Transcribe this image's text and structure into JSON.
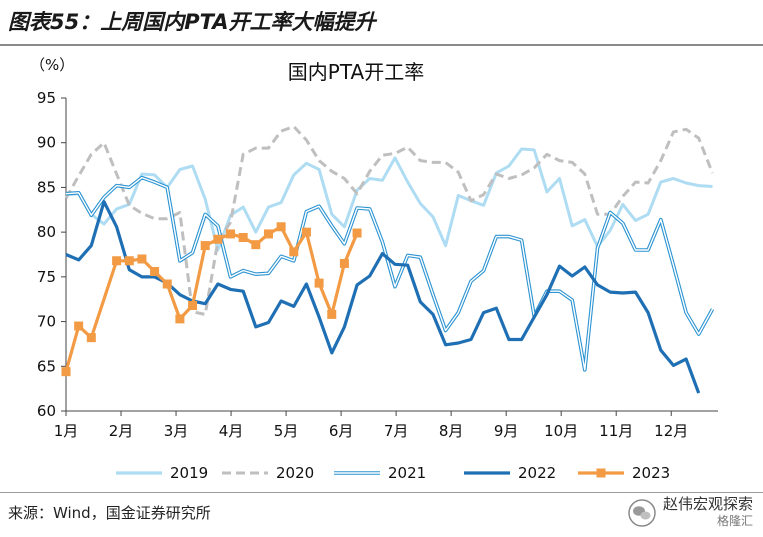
{
  "figure_title": "图表55：上周国内PTA开工率大幅提升",
  "source": "来源：Wind，国金证券研究所",
  "watermark": {
    "text": "赵伟宏观探索",
    "sub": "格隆汇"
  },
  "colors": {
    "2019": "#aedcf3",
    "2020": "#bfbfbf",
    "2021": "#2b93d1",
    "2022": "#1f6fb4",
    "2023": "#f29a44"
  },
  "chart_data": {
    "type": "line",
    "title": "国内PTA开工率",
    "ylabel": "（%）",
    "ylim": [
      60,
      95
    ],
    "yticks": [
      60,
      65,
      70,
      75,
      80,
      85,
      90,
      95
    ],
    "xlim": [
      1,
      12.85
    ],
    "xticks": [
      1,
      2,
      3,
      4,
      5,
      6,
      7,
      8,
      9,
      10,
      11,
      12
    ],
    "xticklabels": [
      "1月",
      "2月",
      "3月",
      "4月",
      "5月",
      "6月",
      "7月",
      "8月",
      "9月",
      "10月",
      "11月",
      "12月"
    ],
    "legend_position": "bottom",
    "series": [
      {
        "name": "2019",
        "style": "solid-light",
        "x": [
          1.0,
          1.23,
          1.46,
          1.69,
          1.92,
          2.15,
          2.38,
          2.61,
          2.84,
          3.07,
          3.3,
          3.53,
          3.76,
          3.99,
          4.22,
          4.45,
          4.68,
          4.91,
          5.14,
          5.37,
          5.6,
          5.83,
          6.06,
          6.29,
          6.52,
          6.75,
          6.98,
          7.21,
          7.44,
          7.67,
          7.9,
          8.13,
          8.36,
          8.59,
          8.82,
          9.05,
          9.28,
          9.51,
          9.74,
          9.97,
          10.2,
          10.43,
          10.66,
          10.89,
          11.12,
          11.35,
          11.58,
          11.81,
          12.04,
          12.27,
          12.5,
          12.75
        ],
        "values": [
          84.2,
          84.3,
          82.0,
          80.9,
          82.6,
          83.1,
          86.5,
          86.4,
          85.0,
          87.0,
          87.4,
          83.7,
          78.0,
          81.9,
          82.8,
          80.0,
          82.8,
          83.3,
          86.4,
          87.7,
          87.0,
          82.0,
          80.6,
          84.7,
          86.0,
          85.8,
          88.3,
          85.6,
          83.2,
          81.7,
          78.5,
          84.1,
          83.5,
          83.0,
          86.6,
          87.4,
          89.3,
          89.2,
          84.5,
          86.0,
          80.7,
          81.4,
          78.4,
          80.2,
          83.1,
          81.3,
          82.0,
          85.6,
          86.0,
          85.5,
          85.2,
          85.1
        ]
      },
      {
        "name": "2020",
        "style": "dashed",
        "x": [
          1.0,
          1.23,
          1.46,
          1.69,
          1.92,
          2.15,
          2.38,
          2.61,
          2.84,
          3.07,
          3.3,
          3.53,
          3.76,
          3.99,
          4.22,
          4.45,
          4.68,
          4.91,
          5.14,
          5.37,
          5.6,
          5.83,
          6.06,
          6.29,
          6.52,
          6.75,
          6.98,
          7.21,
          7.44,
          7.67,
          7.9,
          8.13,
          8.36,
          8.59,
          8.82,
          9.05,
          9.28,
          9.51,
          9.74,
          9.97,
          10.2,
          10.43,
          10.66,
          10.89,
          11.12,
          11.35,
          11.58,
          11.81,
          12.04,
          12.27,
          12.5,
          12.75
        ],
        "values": [
          83.8,
          86.3,
          88.7,
          90.0,
          86.5,
          83.0,
          82.1,
          81.5,
          81.5,
          82.2,
          71.1,
          70.8,
          79.0,
          81.1,
          88.7,
          89.4,
          89.4,
          91.3,
          91.8,
          90.3,
          88.0,
          86.8,
          86.0,
          84.3,
          86.8,
          88.6,
          88.8,
          89.5,
          88.0,
          87.8,
          87.8,
          86.7,
          83.5,
          84.2,
          86.5,
          86.0,
          86.4,
          87.2,
          88.7,
          88.0,
          87.8,
          86.5,
          82.0,
          82.0,
          84.0,
          85.6,
          85.5,
          88.0,
          91.2,
          91.5,
          90.5,
          86.6
        ]
      },
      {
        "name": "2021",
        "style": "double",
        "x": [
          1.0,
          1.23,
          1.46,
          1.69,
          1.92,
          2.15,
          2.38,
          2.61,
          2.84,
          3.07,
          3.3,
          3.53,
          3.76,
          3.99,
          4.22,
          4.45,
          4.68,
          4.91,
          5.14,
          5.37,
          5.6,
          5.83,
          6.06,
          6.29,
          6.52,
          6.75,
          6.98,
          7.21,
          7.44,
          7.67,
          7.9,
          8.13,
          8.36,
          8.59,
          8.82,
          9.05,
          9.28,
          9.51,
          9.74,
          9.97,
          10.2,
          10.43,
          10.66,
          10.89,
          11.12,
          11.35,
          11.58,
          11.81,
          12.04,
          12.27,
          12.5,
          12.75
        ],
        "values": [
          84.3,
          84.4,
          81.9,
          83.9,
          85.2,
          85.0,
          86.1,
          85.6,
          85.0,
          76.8,
          77.7,
          82.0,
          80.7,
          75.0,
          75.7,
          75.3,
          75.4,
          77.3,
          76.8,
          82.3,
          82.9,
          80.7,
          78.7,
          82.7,
          82.6,
          78.9,
          73.9,
          77.4,
          77.2,
          73.0,
          69.0,
          71.0,
          74.5,
          75.7,
          79.5,
          79.5,
          79.1,
          70.6,
          73.4,
          73.4,
          72.4,
          64.6,
          78.2,
          82.2,
          81.0,
          78.0,
          78.0,
          81.4,
          76.3,
          71.0,
          68.6,
          71.4
        ]
      },
      {
        "name": "2022",
        "style": "solid-thick",
        "x": [
          1.0,
          1.23,
          1.46,
          1.69,
          1.92,
          2.15,
          2.38,
          2.61,
          2.84,
          3.07,
          3.3,
          3.53,
          3.76,
          3.99,
          4.22,
          4.45,
          4.68,
          4.91,
          5.14,
          5.37,
          5.6,
          5.83,
          6.06,
          6.29,
          6.52,
          6.75,
          6.98,
          7.21,
          7.44,
          7.67,
          7.9,
          8.13,
          8.36,
          8.59,
          8.82,
          9.05,
          9.28,
          9.51,
          9.74,
          9.97,
          10.2,
          10.43,
          10.66,
          10.89,
          11.12,
          11.35,
          11.58,
          11.81,
          12.04,
          12.27,
          12.5
        ],
        "values": [
          77.5,
          76.9,
          78.5,
          83.4,
          80.6,
          75.8,
          75.0,
          75.0,
          74.3,
          73.0,
          72.3,
          72.0,
          74.2,
          73.6,
          73.4,
          69.4,
          69.9,
          72.3,
          71.7,
          74.2,
          70.5,
          66.5,
          69.4,
          74.1,
          75.1,
          77.6,
          76.4,
          76.3,
          72.2,
          70.8,
          67.4,
          67.6,
          68.0,
          71.0,
          71.5,
          68.0,
          68.0,
          70.5,
          73.0,
          76.2,
          75.1,
          76.1,
          74.1,
          73.3,
          73.2,
          73.3,
          71.0,
          66.8,
          65.1,
          65.8,
          62.0
        ]
      },
      {
        "name": "2023",
        "style": "solid-marker",
        "x": [
          1.0,
          1.23,
          1.46,
          1.92,
          2.15,
          2.38,
          2.61,
          2.84,
          3.07,
          3.3,
          3.53,
          3.76,
          3.99,
          4.22,
          4.45,
          4.68,
          4.91,
          5.14,
          5.37,
          5.6,
          5.83,
          6.06,
          6.29
        ],
        "values": [
          64.4,
          69.5,
          68.2,
          76.8,
          76.8,
          77.0,
          75.6,
          74.2,
          70.3,
          71.8,
          78.5,
          79.2,
          79.8,
          79.4,
          78.6,
          79.8,
          80.6,
          77.8,
          80.0,
          74.3,
          70.8,
          76.5,
          79.9
        ]
      }
    ]
  }
}
